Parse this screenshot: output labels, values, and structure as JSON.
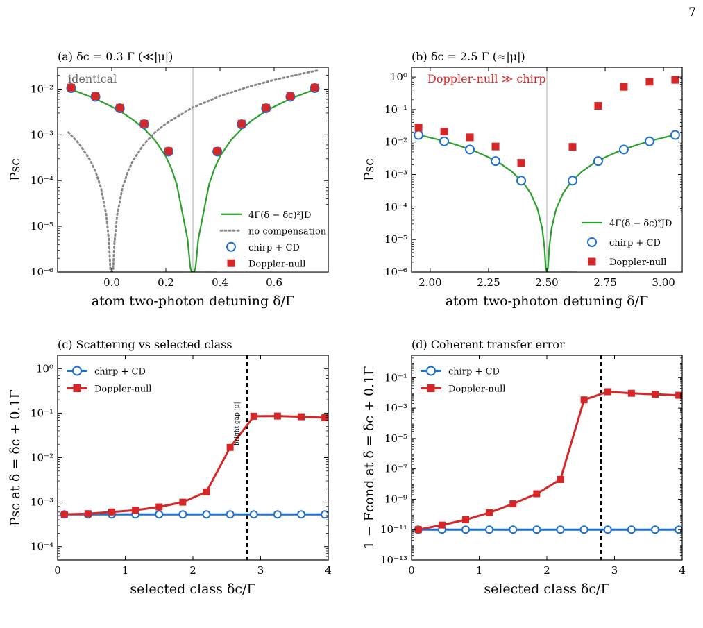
{
  "page_number": "7",
  "colors": {
    "green": "#2ca02c",
    "blue": "#1f6fd1",
    "red": "#d62728",
    "gray": "#888888",
    "vline": "#c8c8c8"
  },
  "chart_data": [
    {
      "id": "a",
      "type": "scatter",
      "title": "(a)  δc = 0.3 Γ  (≪|μ|)",
      "xlabel": "atom two-photon detuning δ/Γ",
      "ylabel": "Psc",
      "xlim": [
        -0.2,
        0.8
      ],
      "ylim": [
        1e-06,
        0.03
      ],
      "yscale": "log",
      "xticks": [
        0.0,
        0.2,
        0.4,
        0.6
      ],
      "xtick_labels": [
        "0.0",
        "0.2",
        "0.4",
        "0.6"
      ],
      "yticks": [
        1e-06,
        1e-05,
        0.0001,
        0.001,
        0.01
      ],
      "ytick_labels": [
        "10⁻⁶",
        "10⁻⁵",
        "10⁻⁴",
        "10⁻³",
        "10⁻²"
      ],
      "vline": 0.3,
      "annotation": "identical",
      "legend_position": "lower-right",
      "curves": [
        {
          "name": "4Γ(δ − δc)²JD",
          "style": "solid",
          "color": "green",
          "x": [
            -0.16,
            -0.12,
            -0.08,
            -0.04,
            0.0,
            0.04,
            0.08,
            0.12,
            0.16,
            0.2,
            0.22,
            0.24,
            0.26,
            0.28,
            0.29,
            0.295,
            0.3,
            0.305,
            0.31,
            0.32,
            0.34,
            0.36,
            0.38,
            0.4,
            0.44,
            0.48,
            0.52,
            0.56,
            0.6,
            0.64,
            0.68,
            0.72,
            0.76
          ],
          "y": [
            0.0102,
            0.00843,
            0.00683,
            0.0054,
            0.00413,
            0.00304,
            0.00211,
            0.00135,
            0.00076,
            0.000338,
            0.000186,
            8.44e-05,
            2.11e-05,
            5.3e-06,
            1.3e-06,
            1e-06,
            1e-06,
            1e-06,
            1.3e-06,
            5.3e-06,
            2.11e-05,
            8.44e-05,
            0.000186,
            0.000338,
            0.00076,
            0.00135,
            0.00211,
            0.00304,
            0.00413,
            0.0054,
            0.00683,
            0.00843,
            0.0102
          ]
        },
        {
          "name": "no compensation",
          "style": "dotted",
          "color": "gray",
          "x": [
            -0.16,
            -0.12,
            -0.08,
            -0.06,
            -0.04,
            -0.02,
            -0.01,
            -0.005,
            0.0,
            0.005,
            0.01,
            0.02,
            0.04,
            0.06,
            0.08,
            0.12,
            0.16,
            0.2,
            0.3,
            0.4,
            0.5,
            0.6,
            0.7,
            0.76
          ],
          "y": [
            0.00113,
            0.000635,
            0.000282,
            0.000159,
            7.06e-05,
            1.76e-05,
            4.4e-06,
            1.1e-06,
            1e-06,
            1.1e-06,
            4.4e-06,
            1.76e-05,
            7.06e-05,
            0.000159,
            0.000282,
            0.000635,
            0.00113,
            0.00176,
            0.00397,
            0.00706,
            0.011,
            0.0159,
            0.0216,
            0.0255
          ]
        }
      ],
      "markers": [
        {
          "name": "chirp + CD",
          "marker": "circle-open",
          "color": "blue",
          "x": [
            -0.15,
            -0.06,
            0.03,
            0.12,
            0.21,
            0.39,
            0.48,
            0.57,
            0.66,
            0.75
          ],
          "y": [
            0.0105,
            0.0068,
            0.0038,
            0.0017,
            0.00043,
            0.00043,
            0.0017,
            0.0038,
            0.0068,
            0.0105
          ]
        },
        {
          "name": "Doppler-null",
          "marker": "square",
          "color": "red",
          "x": [
            -0.15,
            -0.06,
            0.03,
            0.12,
            0.21,
            0.39,
            0.48,
            0.57,
            0.66,
            0.75
          ],
          "y": [
            0.0108,
            0.007,
            0.0039,
            0.00175,
            0.00044,
            0.00044,
            0.00175,
            0.0039,
            0.007,
            0.0108
          ]
        }
      ]
    },
    {
      "id": "b",
      "type": "scatter",
      "title": "(b)  δc = 2.5 Γ  (≈|μ|)",
      "xlabel": "atom two-photon detuning δ/Γ",
      "ylabel": "Psc",
      "xlim": [
        1.92,
        3.08
      ],
      "ylim": [
        1e-06,
        2
      ],
      "yscale": "log",
      "xticks": [
        2.0,
        2.25,
        2.5,
        2.75,
        3.0
      ],
      "xtick_labels": [
        "2.00",
        "2.25",
        "2.50",
        "2.75",
        "3.00"
      ],
      "yticks": [
        1e-06,
        1e-05,
        0.0001,
        0.001,
        0.01,
        0.1,
        1
      ],
      "ytick_labels": [
        "10⁻⁶",
        "10⁻⁵",
        "10⁻⁴",
        "10⁻³",
        "10⁻²",
        "10⁻¹",
        "10⁰"
      ],
      "vline": 2.5,
      "annotation": "Doppler-null ≫ chirp",
      "legend_position": "lower-right",
      "curves": [
        {
          "name": "4Γ(δ − δc)²JD",
          "style": "solid",
          "color": "green",
          "x": [
            1.95,
            2.0,
            2.05,
            2.1,
            2.15,
            2.2,
            2.25,
            2.3,
            2.35,
            2.4,
            2.43,
            2.46,
            2.48,
            2.49,
            2.495,
            2.5,
            2.505,
            2.51,
            2.52,
            2.54,
            2.57,
            2.6,
            2.65,
            2.7,
            2.75,
            2.8,
            2.85,
            2.9,
            2.95,
            3.0,
            3.05
          ],
          "y": [
            0.0165,
            0.0137,
            0.0111,
            0.00876,
            0.0067,
            0.00493,
            0.00342,
            0.00219,
            0.00123,
            0.000548,
            0.000268,
            8.76e-05,
            2.19e-05,
            5.5e-06,
            1.4e-06,
            1e-06,
            1.4e-06,
            5.5e-06,
            2.19e-05,
            8.76e-05,
            0.000268,
            0.000548,
            0.00123,
            0.00219,
            0.00342,
            0.00493,
            0.0067,
            0.00876,
            0.0111,
            0.0137,
            0.0165
          ]
        }
      ],
      "markers": [
        {
          "name": "chirp + CD",
          "marker": "circle-open",
          "color": "blue",
          "x": [
            1.95,
            2.06,
            2.17,
            2.28,
            2.39,
            2.61,
            2.72,
            2.83,
            2.94,
            3.05
          ],
          "y": [
            0.0165,
            0.0105,
            0.0059,
            0.0026,
            0.00065,
            0.00065,
            0.0026,
            0.0059,
            0.0105,
            0.0165
          ]
        },
        {
          "name": "Doppler-null",
          "marker": "square",
          "color": "red",
          "x": [
            1.95,
            2.06,
            2.17,
            2.28,
            2.39,
            2.61,
            2.72,
            2.83,
            2.94,
            3.05
          ],
          "y": [
            0.028,
            0.021,
            0.014,
            0.0073,
            0.0023,
            0.0071,
            0.13,
            0.5,
            0.72,
            0.82
          ]
        }
      ]
    },
    {
      "id": "c",
      "type": "line",
      "title": "(c)  Scattering vs selected class",
      "xlabel": "selected class δc/Γ",
      "ylabel": "Psc  at  δ = δc + 0.1Γ",
      "xlim": [
        0,
        4
      ],
      "ylim": [
        5e-05,
        2
      ],
      "yscale": "log",
      "xticks": [
        0,
        1,
        2,
        3,
        4
      ],
      "xtick_labels": [
        "0",
        "1",
        "2",
        "3",
        "4"
      ],
      "yticks": [
        0.0001,
        0.001,
        0.01,
        0.1,
        1
      ],
      "ytick_labels": [
        "10⁻⁴",
        "10⁻³",
        "10⁻²",
        "10⁻¹",
        "10⁰"
      ],
      "vline_dashed": 2.8,
      "annotation": "bright gap |μ|",
      "legend_position": "top-left",
      "series": [
        {
          "name": "chirp + CD",
          "marker": "circle-open",
          "color": "blue",
          "x": [
            0.1,
            0.45,
            0.8,
            1.15,
            1.5,
            1.85,
            2.2,
            2.55,
            2.9,
            3.25,
            3.6,
            3.95
          ],
          "y": [
            0.00053,
            0.00053,
            0.00053,
            0.00053,
            0.00053,
            0.00053,
            0.00053,
            0.00053,
            0.00053,
            0.00053,
            0.00053,
            0.00053
          ]
        },
        {
          "name": "Doppler-null",
          "marker": "square",
          "color": "red",
          "x": [
            0.1,
            0.45,
            0.8,
            1.15,
            1.5,
            1.85,
            2.2,
            2.55,
            2.9,
            3.25,
            3.6,
            3.95
          ],
          "y": [
            0.00053,
            0.00055,
            0.0006,
            0.00066,
            0.00078,
            0.001,
            0.0017,
            0.017,
            0.085,
            0.086,
            0.083,
            0.079
          ]
        }
      ]
    },
    {
      "id": "d",
      "type": "line",
      "title": "(d)  Coherent transfer error",
      "xlabel": "selected class δc/Γ",
      "ylabel": "1 − Fcond  at  δ = δc + 0.1Γ",
      "xlim": [
        0,
        4
      ],
      "ylim": [
        1e-13,
        3
      ],
      "yscale": "log",
      "xticks": [
        0,
        1,
        2,
        3,
        4
      ],
      "xtick_labels": [
        "0",
        "1",
        "2",
        "3",
        "4"
      ],
      "yticks": [
        1e-13,
        1e-11,
        1e-09,
        1e-07,
        1e-05,
        0.001,
        0.1
      ],
      "ytick_labels": [
        "10⁻¹³",
        "10⁻¹¹",
        "10⁻⁹",
        "10⁻⁷",
        "10⁻⁵",
        "10⁻³",
        "10⁻¹"
      ],
      "vline_dashed": 2.8,
      "legend_position": "top-left",
      "series": [
        {
          "name": "chirp + CD",
          "marker": "circle-open",
          "color": "blue",
          "x": [
            0.1,
            0.45,
            0.8,
            1.15,
            1.5,
            1.85,
            2.2,
            2.55,
            2.9,
            3.25,
            3.6,
            3.95
          ],
          "y": [
            1e-11,
            1e-11,
            1e-11,
            1e-11,
            1e-11,
            1e-11,
            1e-11,
            1e-11,
            1e-11,
            1e-11,
            1e-11,
            1e-11
          ]
        },
        {
          "name": "Doppler-null",
          "marker": "square",
          "color": "red",
          "x": [
            0.1,
            0.45,
            0.8,
            1.15,
            1.5,
            1.85,
            2.2,
            2.55,
            2.9,
            3.25,
            3.6,
            3.95
          ],
          "y": [
            1e-11,
            2e-11,
            4.5e-11,
            1.3e-10,
            5e-10,
            2.3e-09,
            2e-08,
            0.0035,
            0.012,
            0.0095,
            0.008,
            0.007
          ]
        }
      ]
    }
  ]
}
